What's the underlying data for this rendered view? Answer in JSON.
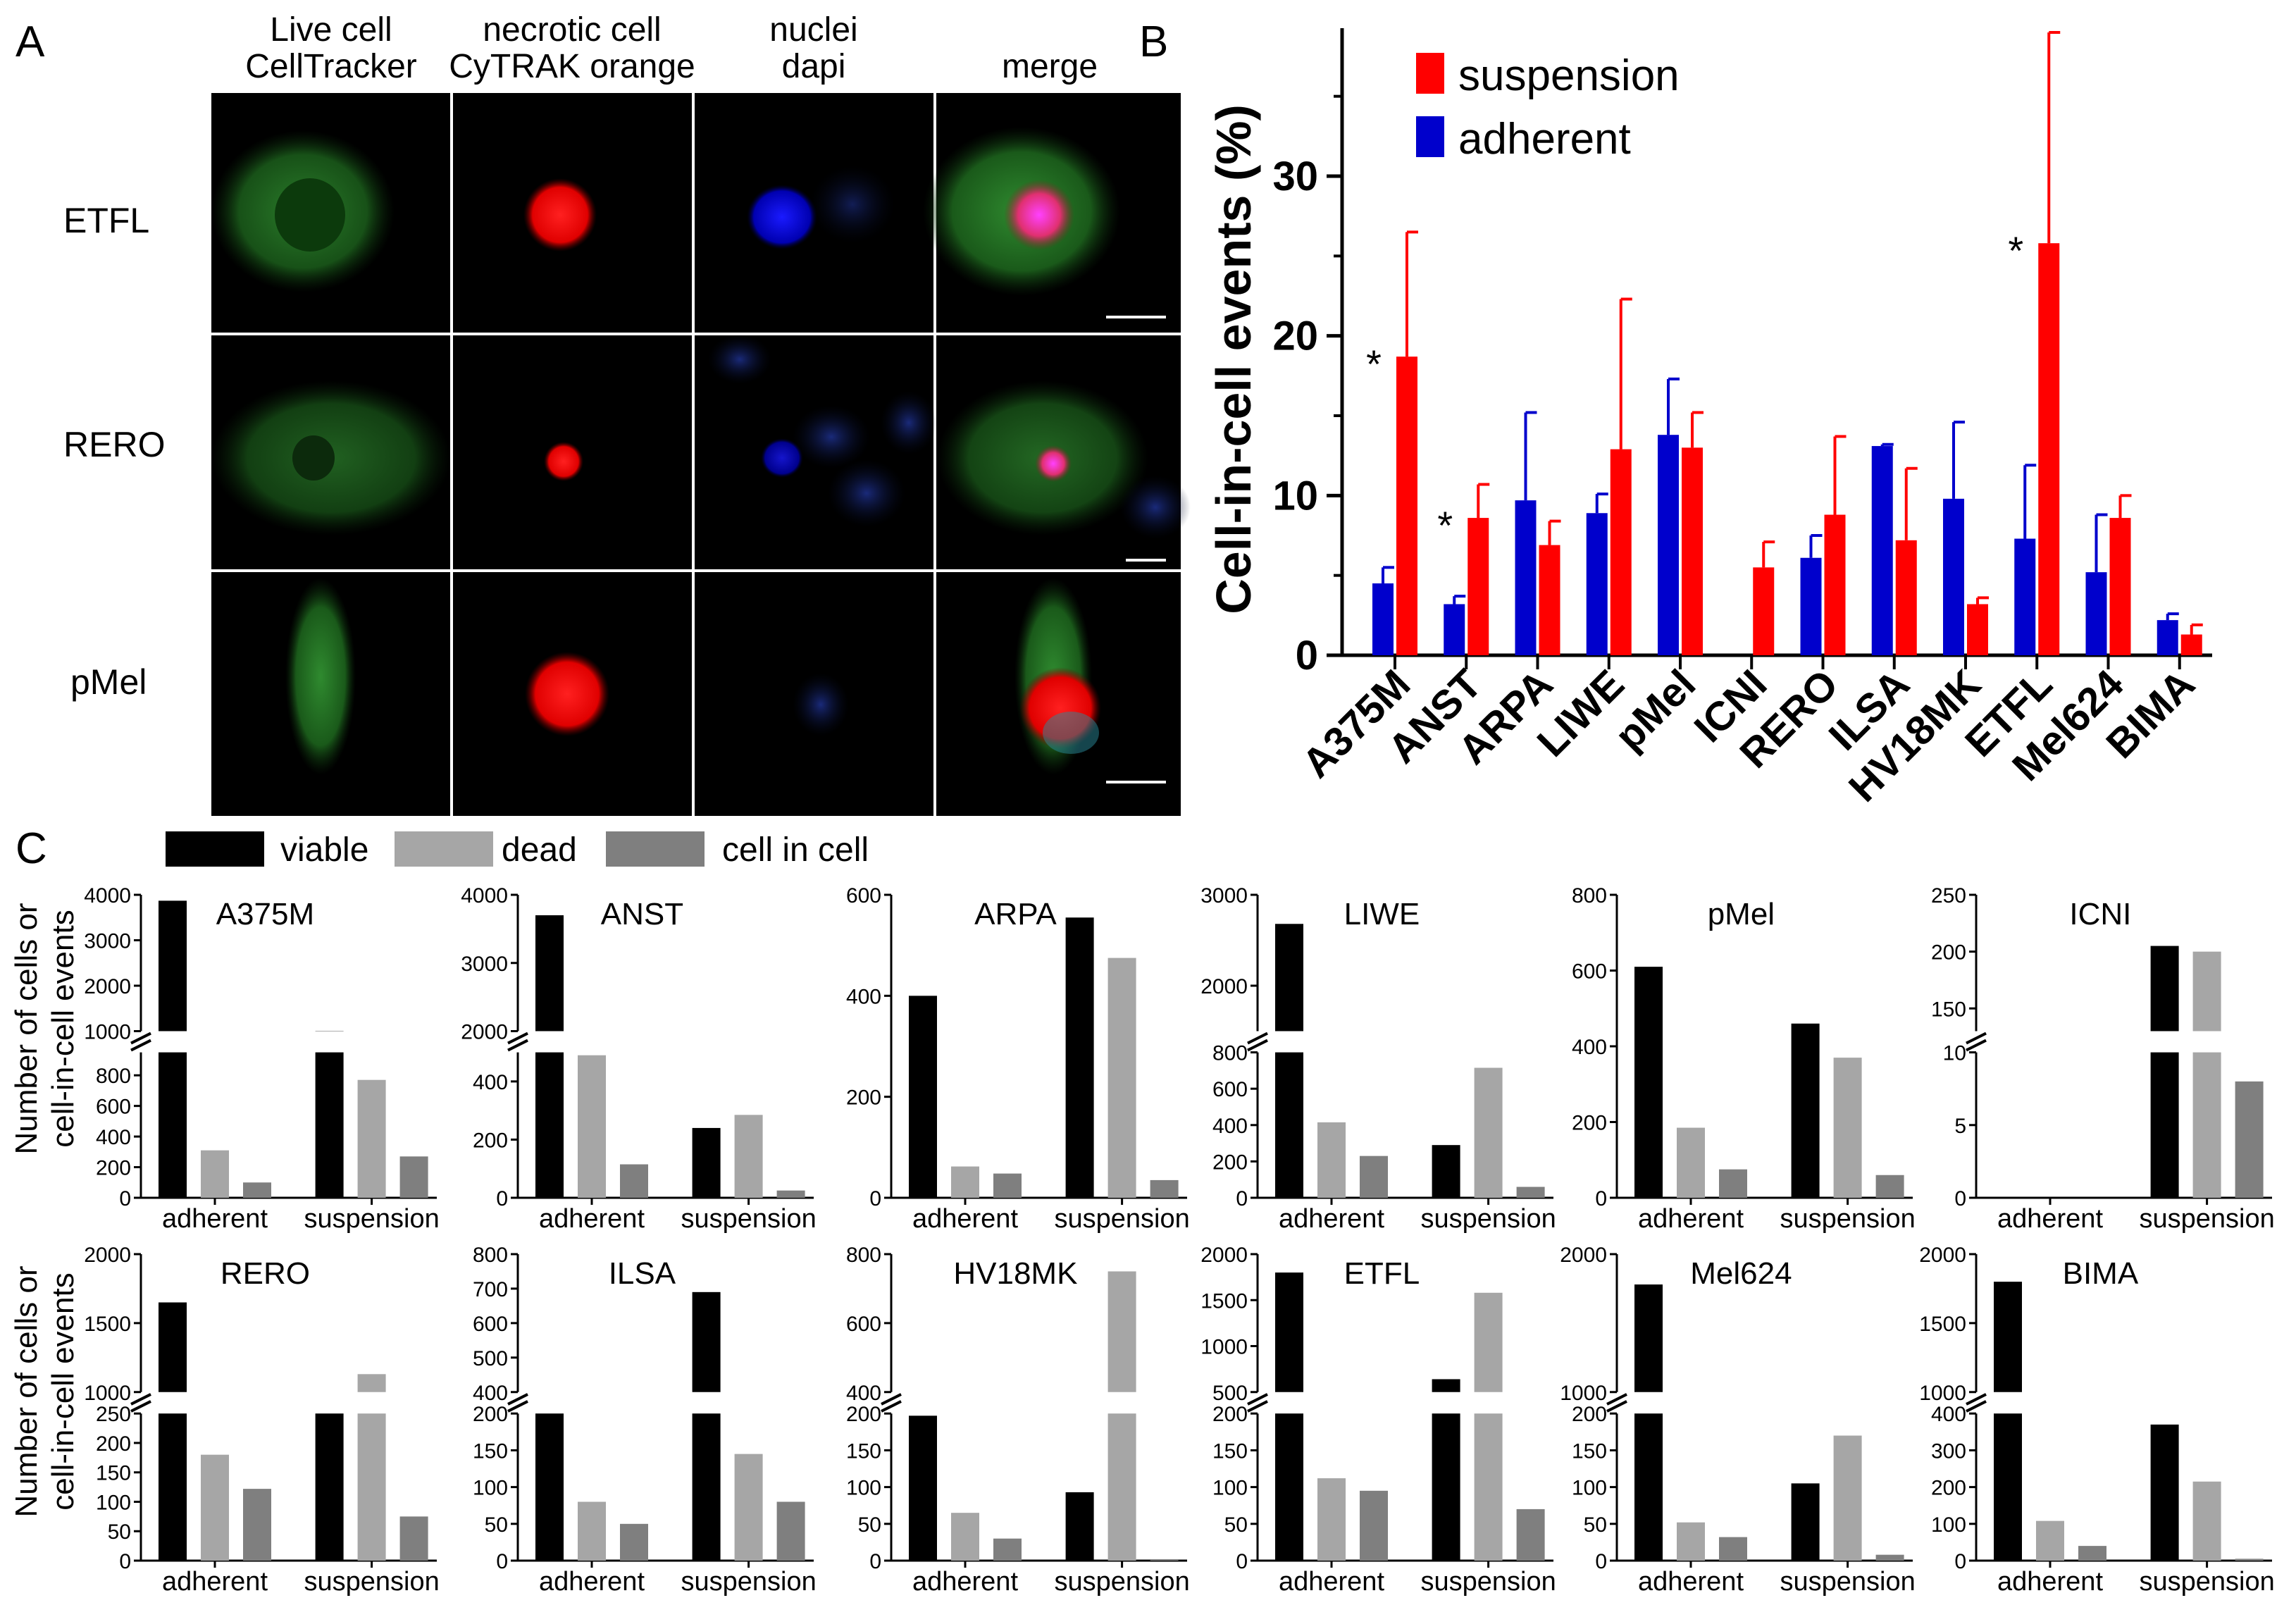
{
  "panel_labels": {
    "a": "A",
    "b": "B",
    "c": "C"
  },
  "micrograph": {
    "columns": [
      {
        "line1": "Live cell",
        "line2": "CellTracker"
      },
      {
        "line1": "necrotic cell",
        "line2": "CyTRAK orange"
      },
      {
        "line1": "nuclei",
        "line2": "dapi"
      },
      {
        "line1": "",
        "line2": "merge"
      }
    ],
    "rows": [
      "ETFL",
      "RERO",
      "pMel"
    ]
  },
  "legend_b": {
    "suspension": "suspension",
    "adherent": "adherent"
  },
  "legend_c": {
    "viable": "viable",
    "dead": "dead",
    "cell_in_cell": "cell in cell"
  },
  "ylabel_c": {
    "line1": "Number of cells or",
    "line2": "cell-in-cell events"
  },
  "colors": {
    "adherent": "#0000cc",
    "suspension": "#ff0000",
    "viable": "#000000",
    "dead": "#a6a6a6",
    "cell_in_cell": "#7f7f7f"
  },
  "chart_data": [
    {
      "type": "bar",
      "panel": "B",
      "ylabel": "Cell-in-cell events (%)",
      "ylim": [
        0,
        38
      ],
      "yticks": [
        0,
        10,
        20,
        30
      ],
      "categories": [
        "A375M",
        "ANST",
        "ARPA",
        "LIWE",
        "pMel",
        "ICNI",
        "RERO",
        "ILSA",
        "HV18MK",
        "ETFL",
        "Mel624",
        "BIMA"
      ],
      "series": [
        {
          "name": "adherent",
          "values": [
            4.5,
            3.2,
            9.7,
            8.9,
            13.8,
            null,
            6.1,
            13.1,
            9.8,
            7.3,
            5.2,
            2.2
          ],
          "errors": [
            1.0,
            0.5,
            5.5,
            1.2,
            3.5,
            null,
            1.4,
            0.1,
            4.8,
            4.6,
            3.6,
            0.4
          ]
        },
        {
          "name": "suspension",
          "values": [
            18.7,
            8.6,
            6.9,
            12.9,
            13.0,
            5.5,
            8.8,
            7.2,
            3.2,
            25.8,
            8.6,
            1.3
          ],
          "errors": [
            7.8,
            2.1,
            1.5,
            9.4,
            2.2,
            1.6,
            4.9,
            4.5,
            0.4,
            13.2,
            1.4,
            0.6
          ]
        }
      ],
      "annotations": [
        {
          "category": "A375M",
          "text": "*"
        },
        {
          "category": "ANST",
          "text": "*"
        },
        {
          "category": "ETFL",
          "text": "*"
        }
      ]
    },
    {
      "type": "bar",
      "title": "A375M",
      "categories": [
        "adherent",
        "suspension"
      ],
      "series": [
        {
          "name": "viable",
          "values": [
            3870,
            1005
          ]
        },
        {
          "name": "dead",
          "values": [
            310,
            770
          ]
        },
        {
          "name": "cell in cell",
          "values": [
            100,
            270
          ]
        }
      ],
      "axis_breaks": [
        {
          "lower": [
            0,
            950
          ],
          "upper": [
            1000,
            4000
          ]
        }
      ],
      "ticks_lower": [
        0,
        200,
        400,
        600,
        800
      ],
      "ticks_upper": [
        1000,
        2000,
        3000,
        4000
      ]
    },
    {
      "type": "bar",
      "title": "ANST",
      "categories": [
        "adherent",
        "suspension"
      ],
      "series": [
        {
          "name": "viable",
          "values": [
            3700,
            240
          ]
        },
        {
          "name": "dead",
          "values": [
            490,
            285
          ]
        },
        {
          "name": "cell in cell",
          "values": [
            115,
            25
          ]
        }
      ],
      "axis_breaks": [
        {
          "lower": [
            0,
            500
          ],
          "upper": [
            2000,
            4000
          ]
        }
      ],
      "ticks_lower": [
        0,
        200,
        400
      ],
      "ticks_upper": [
        2000,
        3000,
        4000
      ]
    },
    {
      "type": "bar",
      "title": "ARPA",
      "categories": [
        "adherent",
        "suspension"
      ],
      "series": [
        {
          "name": "viable",
          "values": [
            400,
            555
          ]
        },
        {
          "name": "dead",
          "values": [
            62,
            475
          ]
        },
        {
          "name": "cell in cell",
          "values": [
            48,
            35
          ]
        }
      ],
      "ticks": [
        0,
        200,
        400,
        600
      ]
    },
    {
      "type": "bar",
      "title": "LIWE",
      "categories": [
        "adherent",
        "suspension"
      ],
      "series": [
        {
          "name": "viable",
          "values": [
            2680,
            290
          ]
        },
        {
          "name": "dead",
          "values": [
            415,
            715
          ]
        },
        {
          "name": "cell in cell",
          "values": [
            230,
            60
          ]
        }
      ],
      "axis_breaks": [
        {
          "lower": [
            0,
            800
          ],
          "upper": [
            1500,
            3000
          ]
        }
      ],
      "ticks_lower": [
        0,
        200,
        400,
        600,
        800
      ],
      "ticks_upper": [
        2000,
        3000
      ]
    },
    {
      "type": "bar",
      "title": "pMel",
      "categories": [
        "adherent",
        "suspension"
      ],
      "series": [
        {
          "name": "viable",
          "values": [
            610,
            460
          ]
        },
        {
          "name": "dead",
          "values": [
            185,
            370
          ]
        },
        {
          "name": "cell in cell",
          "values": [
            75,
            60
          ]
        }
      ],
      "ticks": [
        0,
        200,
        400,
        600,
        800
      ]
    },
    {
      "type": "bar",
      "title": "ICNI",
      "categories": [
        "adherent",
        "suspension"
      ],
      "series": [
        {
          "name": "viable",
          "values": [
            0,
            205
          ]
        },
        {
          "name": "dead",
          "values": [
            0,
            200
          ]
        },
        {
          "name": "cell in cell",
          "values": [
            0,
            8
          ]
        }
      ],
      "axis_breaks": [
        {
          "lower": [
            0,
            10
          ],
          "upper": [
            130,
            250
          ]
        }
      ],
      "ticks_lower": [
        0,
        5,
        10
      ],
      "ticks_upper": [
        150,
        200,
        250
      ]
    },
    {
      "type": "bar",
      "title": "RERO",
      "categories": [
        "adherent",
        "suspension"
      ],
      "series": [
        {
          "name": "viable",
          "values": [
            1650,
            250
          ]
        },
        {
          "name": "dead",
          "values": [
            180,
            1130
          ]
        },
        {
          "name": "cell in cell",
          "values": [
            122,
            75
          ]
        }
      ],
      "axis_breaks": [
        {
          "lower": [
            0,
            250
          ],
          "upper": [
            1000,
            2000
          ]
        }
      ],
      "ticks_lower": [
        0,
        50,
        100,
        150,
        200,
        250
      ],
      "ticks_upper": [
        1000,
        1500,
        2000
      ]
    },
    {
      "type": "bar",
      "title": "ILSA",
      "categories": [
        "adherent",
        "suspension"
      ],
      "series": [
        {
          "name": "viable",
          "values": [
            200,
            690
          ]
        },
        {
          "name": "dead",
          "values": [
            80,
            145
          ]
        },
        {
          "name": "cell in cell",
          "values": [
            50,
            80
          ]
        }
      ],
      "axis_breaks": [
        {
          "lower": [
            0,
            200
          ],
          "upper": [
            400,
            800
          ]
        }
      ],
      "ticks_lower": [
        0,
        50,
        100,
        150,
        200
      ],
      "ticks_upper": [
        400,
        500,
        600,
        700,
        800
      ]
    },
    {
      "type": "bar",
      "title": "HV18MK",
      "categories": [
        "adherent",
        "suspension"
      ],
      "series": [
        {
          "name": "viable",
          "values": [
            197,
            93
          ]
        },
        {
          "name": "dead",
          "values": [
            65,
            750
          ]
        },
        {
          "name": "cell in cell",
          "values": [
            30,
            2
          ]
        }
      ],
      "axis_breaks": [
        {
          "lower": [
            0,
            200
          ],
          "upper": [
            400,
            800
          ]
        }
      ],
      "ticks_lower": [
        0,
        50,
        100,
        150,
        200
      ],
      "ticks_upper": [
        400,
        600,
        800
      ]
    },
    {
      "type": "bar",
      "title": "ETFL",
      "categories": [
        "adherent",
        "suspension"
      ],
      "series": [
        {
          "name": "viable",
          "values": [
            1800,
            640
          ]
        },
        {
          "name": "dead",
          "values": [
            112,
            1580
          ]
        },
        {
          "name": "cell in cell",
          "values": [
            95,
            70
          ]
        }
      ],
      "axis_breaks": [
        {
          "lower": [
            0,
            200
          ],
          "upper": [
            500,
            2000
          ]
        }
      ],
      "ticks_lower": [
        0,
        50,
        100,
        150,
        200
      ],
      "ticks_upper": [
        500,
        1000,
        1500,
        2000
      ]
    },
    {
      "type": "bar",
      "title": "Mel624",
      "categories": [
        "adherent",
        "suspension"
      ],
      "series": [
        {
          "name": "viable",
          "values": [
            1780,
            105
          ]
        },
        {
          "name": "dead",
          "values": [
            52,
            170
          ]
        },
        {
          "name": "cell in cell",
          "values": [
            32,
            8
          ]
        }
      ],
      "axis_breaks": [
        {
          "lower": [
            0,
            200
          ],
          "upper": [
            1000,
            2000
          ]
        }
      ],
      "ticks_lower": [
        0,
        50,
        100,
        150,
        200
      ],
      "ticks_upper": [
        1000,
        2000
      ]
    },
    {
      "type": "bar",
      "title": "BIMA",
      "categories": [
        "adherent",
        "suspension"
      ],
      "series": [
        {
          "name": "viable",
          "values": [
            1800,
            370
          ]
        },
        {
          "name": "dead",
          "values": [
            108,
            215
          ]
        },
        {
          "name": "cell in cell",
          "values": [
            40,
            5
          ]
        }
      ],
      "axis_breaks": [
        {
          "lower": [
            0,
            400
          ],
          "upper": [
            1000,
            2000
          ]
        }
      ],
      "ticks_lower": [
        0,
        100,
        200,
        300,
        400
      ],
      "ticks_upper": [
        1000,
        1500,
        2000
      ]
    }
  ]
}
